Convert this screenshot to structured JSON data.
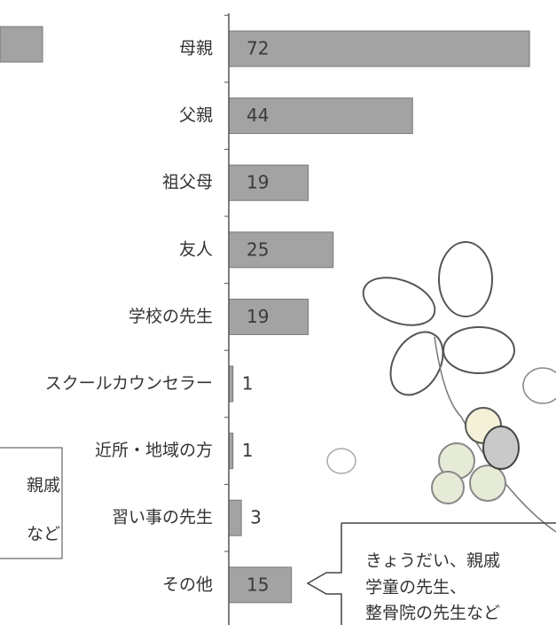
{
  "chart_data": {
    "type": "barh",
    "categories": [
      "母親",
      "父親",
      "祖父母",
      "友人",
      "学校の先生",
      "スクールカウンセラー",
      "近所・地域の方",
      "習い事の先生",
      "その他"
    ],
    "values": [
      72,
      44,
      19,
      25,
      19,
      1,
      1,
      3,
      15
    ],
    "color": "#a3a3a3",
    "annotations": [
      {
        "lines": [
          "きょうだい、親戚",
          "学童の先生、",
          "整骨院の先生など"
        ]
      },
      {
        "lines": [
          "親戚",
          "など"
        ]
      }
    ]
  }
}
